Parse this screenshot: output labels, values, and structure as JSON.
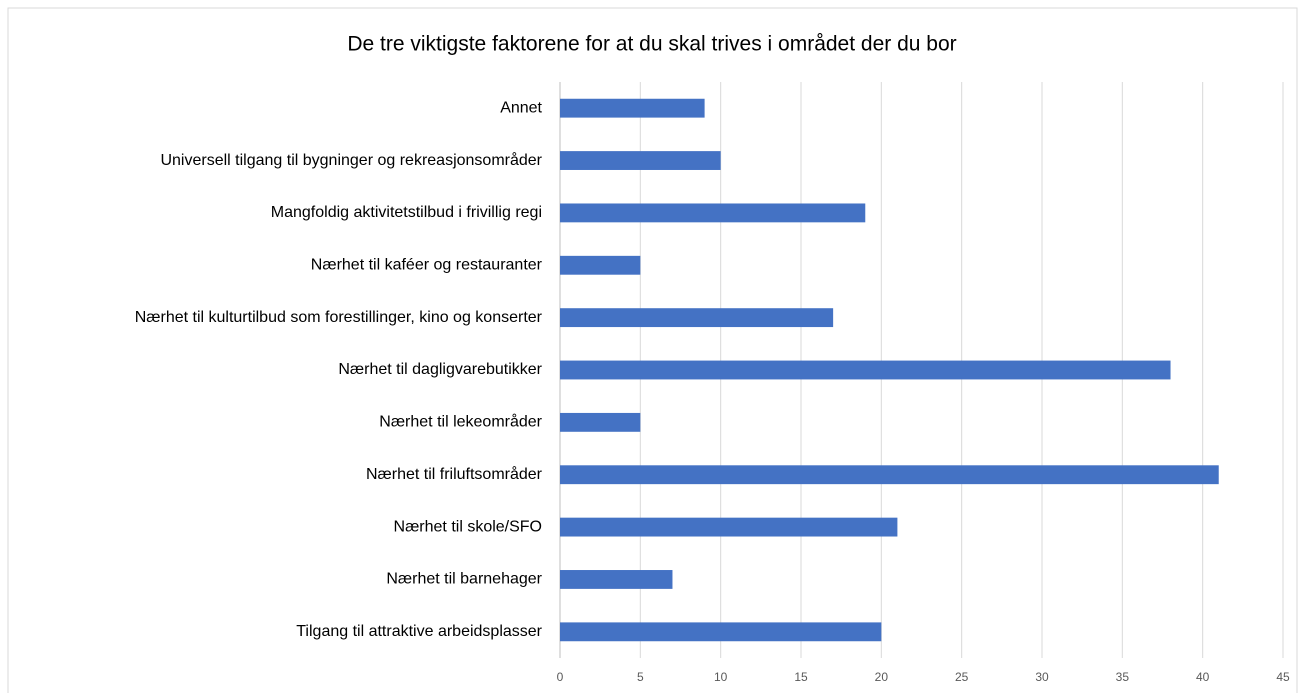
{
  "chart_data": {
    "type": "bar",
    "orientation": "horizontal",
    "title": "De tre viktigste faktorene for at du skal trives i området der du bor",
    "categories": [
      "Annet",
      "Universell tilgang til bygninger og rekreasjonsområder",
      "Mangfoldig aktivitetstilbud i frivillig regi",
      "Nærhet til kaféer og restauranter",
      "Nærhet til kulturtilbud som forestillinger, kino og konserter",
      "Nærhet til dagligvarebutikker",
      "Nærhet til lekeområder",
      "Nærhet til friluftsområder",
      "Nærhet til skole/SFO",
      "Nærhet til barnehager",
      "Tilgang til attraktive arbeidsplasser"
    ],
    "values": [
      9,
      10,
      19,
      5,
      17,
      38,
      5,
      41,
      21,
      7,
      20
    ],
    "color": "#4472c4",
    "xlim": [
      0,
      45
    ],
    "xticks": [
      0,
      5,
      10,
      15,
      20,
      25,
      30,
      35,
      40,
      45
    ],
    "grid": true
  }
}
